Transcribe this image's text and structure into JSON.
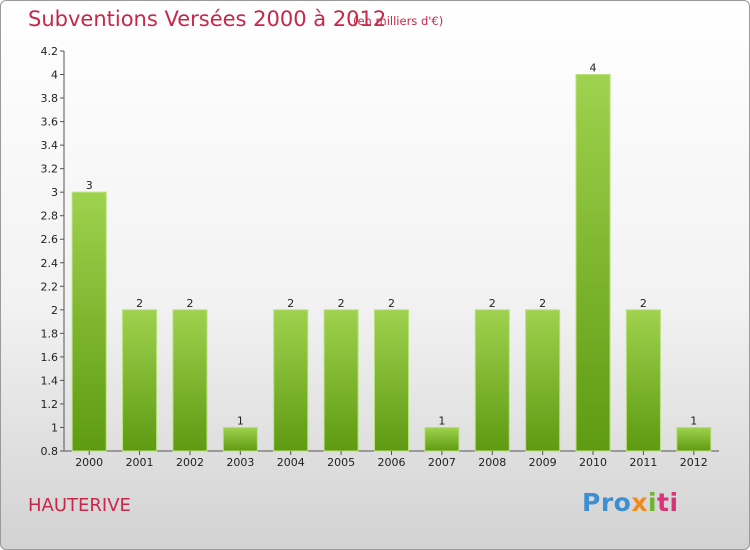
{
  "chart_data": {
    "type": "bar",
    "title": "Subventions Versées 2000 à 2012",
    "subtitle": "(en milliers d'€)",
    "categories": [
      "2000",
      "2001",
      "2002",
      "2003",
      "2004",
      "2005",
      "2006",
      "2007",
      "2008",
      "2009",
      "2010",
      "2011",
      "2012"
    ],
    "values": [
      3,
      2,
      2,
      1,
      2,
      2,
      2,
      1,
      2,
      2,
      4,
      2,
      1
    ],
    "data_labels": [
      "3",
      "2",
      "2",
      "1",
      "2",
      "2",
      "2",
      "1",
      "2",
      "2",
      "4",
      "2",
      "1"
    ],
    "ylim": [
      0.8,
      4.2
    ],
    "yticks": [
      0.8,
      1,
      1.2,
      1.4,
      1.6,
      1.8,
      2,
      2.2,
      2.4,
      2.6,
      2.8,
      3,
      3.2,
      3.4,
      3.6,
      3.8,
      4,
      4.2
    ],
    "ytick_labels": [
      "0.8",
      "1",
      "1.2",
      "1.4",
      "1.6",
      "1.8",
      "2",
      "2.2",
      "2.4",
      "2.6",
      "2.8",
      "3",
      "3.2",
      "3.4",
      "3.6",
      "3.8",
      "4",
      "4.2"
    ],
    "bar_color": "#7dbb32",
    "grid": false,
    "xlabel": "",
    "ylabel": ""
  },
  "footer": {
    "commune": "HAUTERIVE",
    "logo": [
      "Pro",
      "x",
      "i",
      "ti"
    ]
  }
}
